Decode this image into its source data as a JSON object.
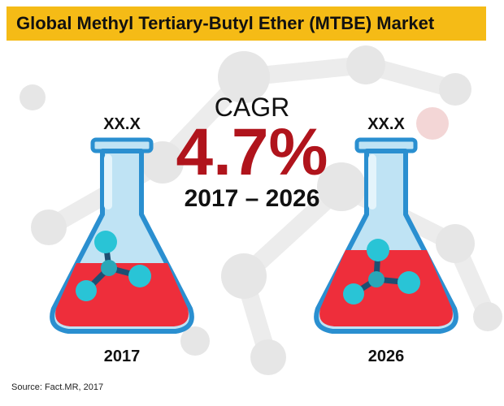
{
  "title": "Global Methyl Tertiary-Butyl Ether (MTBE) Market",
  "cagr": {
    "label": "CAGR",
    "value": "4.7%",
    "period": "2017 – 2026"
  },
  "flasks": [
    {
      "value_label": "XX.X",
      "year": "2017"
    },
    {
      "value_label": "XX.X",
      "year": "2026"
    }
  ],
  "source": "Source: Fact.MR, 2017",
  "colors": {
    "title_bar": "#f5bb16",
    "cagr_value": "#b0141c",
    "flask_glass": "#bfe3f4",
    "flask_outline": "#2a8fd0",
    "liquid": "#ee2e3b",
    "molecule": "#29c4d6"
  }
}
